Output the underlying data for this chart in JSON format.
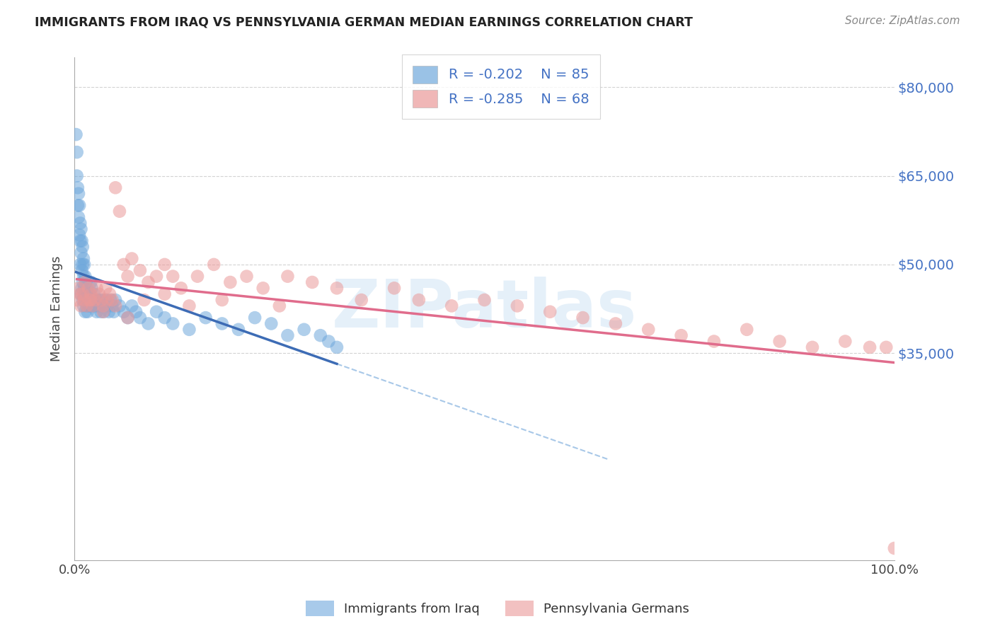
{
  "title": "IMMIGRANTS FROM IRAQ VS PENNSYLVANIA GERMAN MEDIAN EARNINGS CORRELATION CHART",
  "source": "Source: ZipAtlas.com",
  "ylabel": "Median Earnings",
  "legend_iraq_r": "R = -0.202",
  "legend_iraq_n": "N = 85",
  "legend_pg_r": "R = -0.285",
  "legend_pg_n": "N = 68",
  "iraq_color": "#6fa8dc",
  "pg_color": "#ea9999",
  "iraq_line_color": "#3d6cb5",
  "pg_line_color": "#e06c8c",
  "dashed_line_color": "#a8c8e8",
  "axis_color": "#4472c4",
  "watermark_text": "ZIPatlas",
  "xlim": [
    0,
    1.0
  ],
  "ylim": [
    0,
    85000
  ],
  "ytick_values": [
    35000,
    50000,
    65000,
    80000
  ],
  "ytick_labels": [
    "$35,000",
    "$50,000",
    "$65,000",
    "$80,000"
  ],
  "iraq_x": [
    0.002,
    0.003,
    0.003,
    0.004,
    0.004,
    0.005,
    0.005,
    0.006,
    0.006,
    0.007,
    0.007,
    0.007,
    0.008,
    0.008,
    0.009,
    0.009,
    0.01,
    0.01,
    0.01,
    0.011,
    0.011,
    0.012,
    0.012,
    0.013,
    0.013,
    0.014,
    0.014,
    0.015,
    0.015,
    0.016,
    0.016,
    0.017,
    0.017,
    0.018,
    0.019,
    0.02,
    0.02,
    0.021,
    0.022,
    0.023,
    0.024,
    0.025,
    0.026,
    0.027,
    0.028,
    0.03,
    0.031,
    0.032,
    0.033,
    0.035,
    0.036,
    0.038,
    0.04,
    0.042,
    0.044,
    0.046,
    0.048,
    0.05,
    0.055,
    0.06,
    0.065,
    0.07,
    0.075,
    0.08,
    0.09,
    0.1,
    0.11,
    0.12,
    0.14,
    0.16,
    0.18,
    0.2,
    0.22,
    0.24,
    0.26,
    0.28,
    0.3,
    0.31,
    0.32,
    0.008,
    0.009,
    0.01,
    0.011,
    0.012,
    0.013
  ],
  "iraq_y": [
    72000,
    69000,
    65000,
    63000,
    60000,
    62000,
    58000,
    60000,
    55000,
    57000,
    54000,
    50000,
    56000,
    52000,
    54000,
    49000,
    53000,
    50000,
    47000,
    51000,
    48000,
    50000,
    46000,
    48000,
    45000,
    47000,
    44000,
    46000,
    43000,
    45000,
    42000,
    44000,
    43000,
    45000,
    43000,
    47000,
    44000,
    46000,
    43000,
    44000,
    45000,
    43000,
    44000,
    42000,
    43000,
    44000,
    43000,
    42000,
    44000,
    43000,
    42000,
    44000,
    43000,
    42000,
    44000,
    43000,
    42000,
    44000,
    43000,
    42000,
    41000,
    43000,
    42000,
    41000,
    40000,
    42000,
    41000,
    40000,
    39000,
    41000,
    40000,
    39000,
    41000,
    40000,
    38000,
    39000,
    38000,
    37000,
    36000,
    45000,
    46000,
    44000,
    43000,
    45000,
    42000
  ],
  "pg_x": [
    0.003,
    0.005,
    0.007,
    0.008,
    0.01,
    0.012,
    0.013,
    0.015,
    0.017,
    0.018,
    0.02,
    0.022,
    0.025,
    0.027,
    0.03,
    0.033,
    0.035,
    0.038,
    0.04,
    0.043,
    0.046,
    0.05,
    0.055,
    0.06,
    0.065,
    0.07,
    0.08,
    0.09,
    0.1,
    0.11,
    0.12,
    0.13,
    0.15,
    0.17,
    0.19,
    0.21,
    0.23,
    0.26,
    0.29,
    0.32,
    0.35,
    0.39,
    0.42,
    0.46,
    0.5,
    0.54,
    0.58,
    0.62,
    0.66,
    0.7,
    0.74,
    0.78,
    0.82,
    0.86,
    0.9,
    0.94,
    0.97,
    0.99,
    1.0,
    0.02,
    0.035,
    0.05,
    0.065,
    0.085,
    0.11,
    0.14,
    0.18,
    0.25
  ],
  "pg_y": [
    44000,
    46000,
    45000,
    43000,
    45000,
    44000,
    47000,
    43000,
    46000,
    44000,
    45000,
    43000,
    44000,
    46000,
    45000,
    44000,
    43000,
    46000,
    44000,
    45000,
    44000,
    63000,
    59000,
    50000,
    48000,
    51000,
    49000,
    47000,
    48000,
    50000,
    48000,
    46000,
    48000,
    50000,
    47000,
    48000,
    46000,
    48000,
    47000,
    46000,
    44000,
    46000,
    44000,
    43000,
    44000,
    43000,
    42000,
    41000,
    40000,
    39000,
    38000,
    37000,
    39000,
    37000,
    36000,
    37000,
    36000,
    36000,
    2000,
    44000,
    42000,
    43000,
    41000,
    44000,
    45000,
    43000,
    44000,
    43000
  ]
}
